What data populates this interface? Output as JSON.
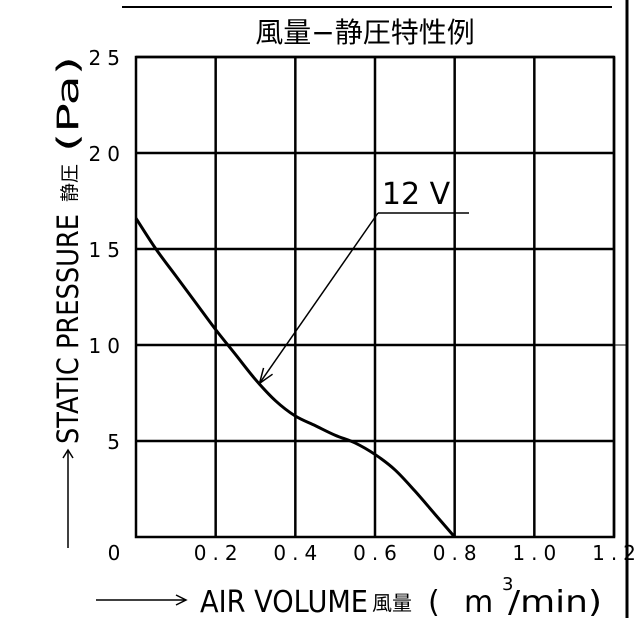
{
  "chart_data": {
    "type": "line",
    "title": "風量−静圧特性例",
    "xlabel": "AIR VOLUME 風量 (m³/min)",
    "ylabel": "STATIC PRESSURE 静圧 (Pa)",
    "xlabel_parts": {
      "en": "AIR VOLUME",
      "jp": "風量",
      "open": "(",
      "unit_base": "m",
      "unit_sup": "3",
      "unit_tail": "/min)"
    },
    "ylabel_parts": {
      "en": "STATIC PRESSURE",
      "jp": "静圧",
      "unit": "(Pa)"
    },
    "xlim": [
      0,
      1.2
    ],
    "ylim": [
      0,
      25
    ],
    "x_ticks": [
      0.2,
      0.4,
      0.6,
      0.8,
      1.0,
      1.2
    ],
    "x_tick_labels": [
      "0.2",
      "0.4",
      "0.6",
      "0.8",
      "1.0",
      "1.2"
    ],
    "y_ticks": [
      5,
      10,
      15,
      20,
      25
    ],
    "y_tick_labels": [
      "5",
      "10",
      "15",
      "20",
      "25"
    ],
    "origin_label": "0",
    "grid": true,
    "series": [
      {
        "name": "12 V",
        "x": [
          0.0,
          0.05,
          0.1,
          0.15,
          0.2,
          0.25,
          0.3,
          0.35,
          0.4,
          0.45,
          0.5,
          0.55,
          0.6,
          0.65,
          0.7,
          0.75,
          0.8
        ],
        "y": [
          16.6,
          15.0,
          13.6,
          12.2,
          10.8,
          9.5,
          8.2,
          7.1,
          6.3,
          5.8,
          5.3,
          4.9,
          4.3,
          3.5,
          2.4,
          1.2,
          0.0
        ]
      }
    ],
    "annotations": [
      {
        "text": "12 V",
        "series": "12 V",
        "points_to": {
          "x": 0.31,
          "y": 8.0
        }
      }
    ]
  }
}
